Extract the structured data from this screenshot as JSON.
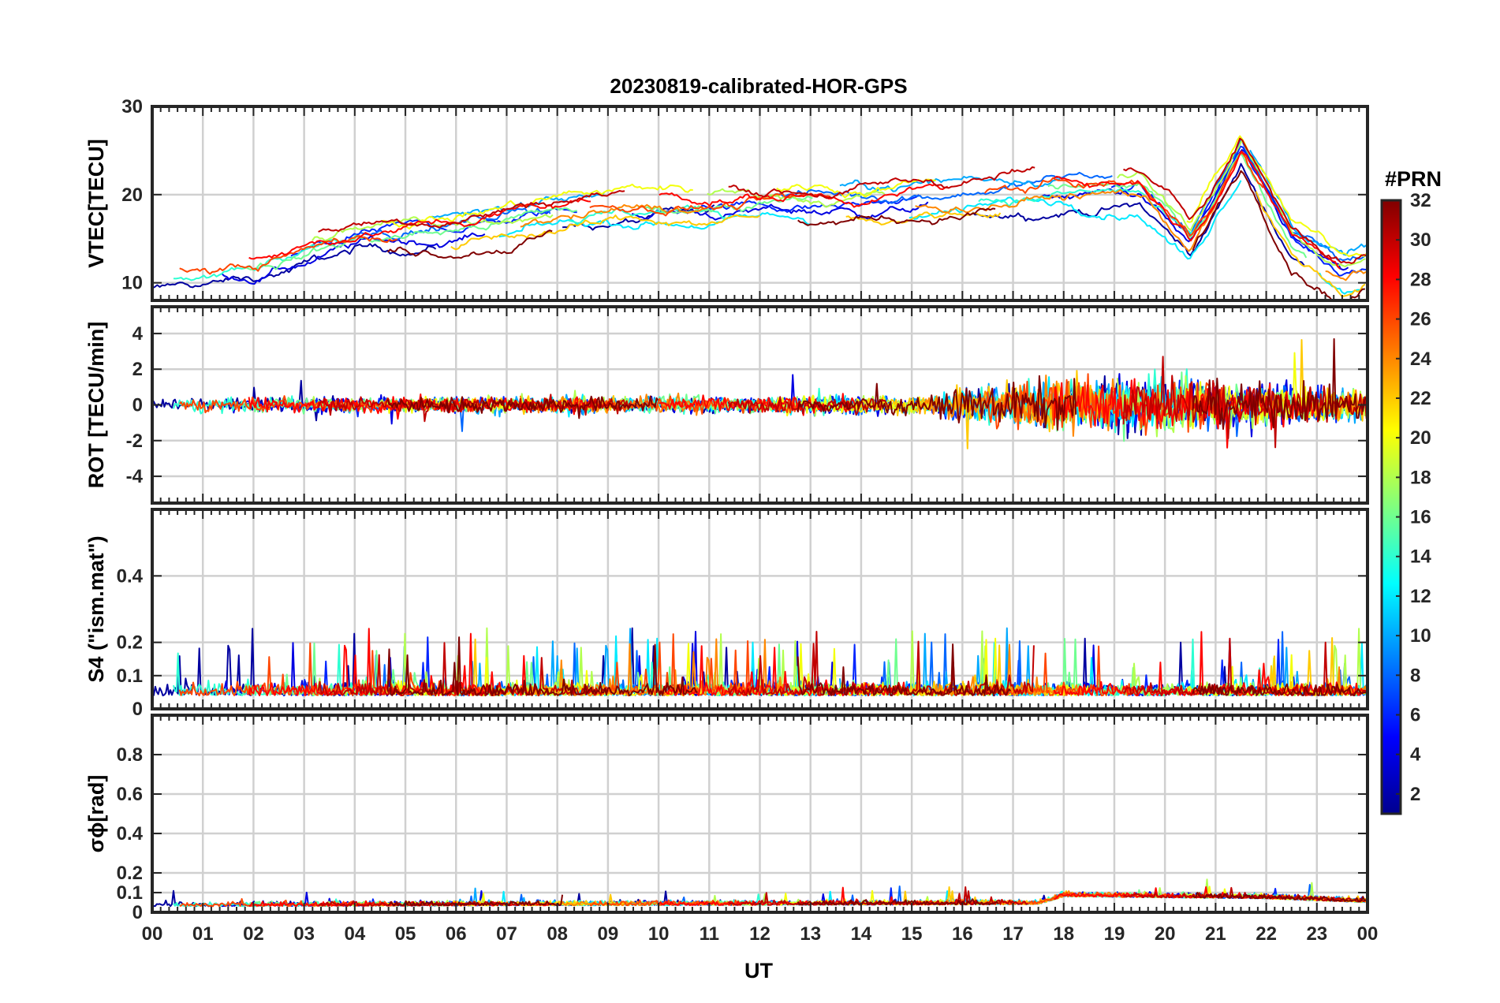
{
  "chart_data": {
    "title": "20230819-calibrated-HOR-GPS",
    "xlabel": "UT",
    "x_tick_labels": [
      "00",
      "01",
      "02",
      "03",
      "04",
      "05",
      "06",
      "07",
      "08",
      "09",
      "10",
      "11",
      "12",
      "13",
      "14",
      "15",
      "16",
      "17",
      "18",
      "19",
      "20",
      "21",
      "22",
      "23",
      "00"
    ],
    "xlim": [
      0,
      24
    ],
    "colorbar": {
      "label": "#PRN",
      "range": [
        1,
        32
      ],
      "tick_labels": [
        "2",
        "4",
        "6",
        "8",
        "10",
        "12",
        "14",
        "16",
        "18",
        "20",
        "22",
        "24",
        "26",
        "28",
        "30",
        "32"
      ],
      "colormap": "jet"
    },
    "panels": [
      {
        "name": "vtec",
        "type": "line",
        "ylabel": "VTEC[TECU]",
        "ylim": [
          8,
          30
        ],
        "y_tick_labels": [
          "10",
          "20",
          "30"
        ],
        "y_ticks": [
          10,
          20,
          30
        ],
        "grid": true,
        "approx_trend": [
          {
            "ut": 0,
            "value": 11
          },
          {
            "ut": 2,
            "value": 12
          },
          {
            "ut": 4,
            "value": 15
          },
          {
            "ut": 6,
            "value": 16
          },
          {
            "ut": 8,
            "value": 18
          },
          {
            "ut": 10,
            "value": 19
          },
          {
            "ut": 12,
            "value": 19
          },
          {
            "ut": 14,
            "value": 19
          },
          {
            "ut": 16,
            "value": 20
          },
          {
            "ut": 18,
            "value": 21
          },
          {
            "ut": 19.5,
            "value": 21
          },
          {
            "ut": 20.5,
            "value": 15
          },
          {
            "ut": 21.5,
            "value": 25
          },
          {
            "ut": 22.5,
            "value": 15
          },
          {
            "ut": 23.5,
            "value": 11
          },
          {
            "ut": 24,
            "value": 12
          }
        ]
      },
      {
        "name": "rot",
        "type": "line",
        "ylabel": "ROT [TECU/min]",
        "ylim": [
          -5.5,
          5.5
        ],
        "y_tick_labels": [
          "-4",
          "-2",
          "0",
          "2",
          "4"
        ],
        "y_ticks": [
          -4,
          -2,
          0,
          2,
          4
        ],
        "grid": true,
        "approx_amplitude": [
          {
            "ut": 0,
            "value": 0.5
          },
          {
            "ut": 15.5,
            "value": 0.6
          },
          {
            "ut": 16,
            "value": 1.2
          },
          {
            "ut": 17.5,
            "value": 1.6
          },
          {
            "ut": 19.5,
            "value": 2.0
          },
          {
            "ut": 21,
            "value": 1.6
          },
          {
            "ut": 24,
            "value": 1.0
          }
        ]
      },
      {
        "name": "s4",
        "type": "line",
        "ylabel": "S4 (\"ism.mat\")",
        "ylim": [
          0,
          0.6
        ],
        "y_tick_labels": [
          "0",
          "0.1",
          "0.2",
          "0.4"
        ],
        "y_ticks": [
          0,
          0.1,
          0.2,
          0.4
        ],
        "grid": true,
        "approx_level": 0.04
      },
      {
        "name": "sigma-phi",
        "type": "line",
        "ylabel": "σϕ[rad]",
        "ylim": [
          0,
          1
        ],
        "y_tick_labels": [
          "0",
          "0.1",
          "0.2",
          "0.4",
          "0.6",
          "0.8"
        ],
        "y_ticks": [
          0,
          0.1,
          0.2,
          0.4,
          0.6,
          0.8
        ],
        "grid": true,
        "approx_level": [
          {
            "ut": 0,
            "value": 0.03
          },
          {
            "ut": 17.5,
            "value": 0.04
          },
          {
            "ut": 18,
            "value": 0.08
          },
          {
            "ut": 22,
            "value": 0.07
          },
          {
            "ut": 24,
            "value": 0.05
          }
        ]
      }
    ],
    "series": [
      {
        "prn": 2
      },
      {
        "prn": 4
      },
      {
        "prn": 6
      },
      {
        "prn": 8
      },
      {
        "prn": 10
      },
      {
        "prn": 12
      },
      {
        "prn": 14
      },
      {
        "prn": 16
      },
      {
        "prn": 18
      },
      {
        "prn": 20
      },
      {
        "prn": 22
      },
      {
        "prn": 24
      },
      {
        "prn": 26
      },
      {
        "prn": 28
      },
      {
        "prn": 30
      },
      {
        "prn": 32
      }
    ]
  }
}
